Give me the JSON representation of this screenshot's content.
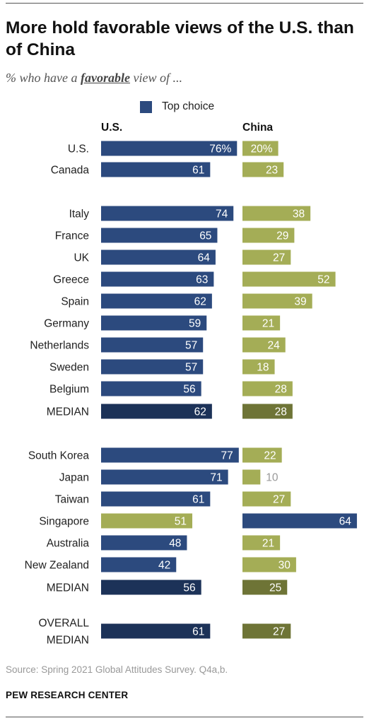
{
  "title": "More hold favorable views of the U.S. than of China",
  "subtitle": {
    "prefix": "% who have a ",
    "emphasis": "favorable",
    "suffix": " view of ..."
  },
  "legend": {
    "label": "Top choice"
  },
  "columns": {
    "us": "U.S.",
    "china": "China"
  },
  "source": "Source: Spring 2021 Global Attitudes Survey. Q4a,b.",
  "organization": "PEW RESEARCH CENTER",
  "colors": {
    "top_choice": "#2c4a7e",
    "other": "#a4ad56",
    "median_us": "#1c3258",
    "median_china": "#6e7436",
    "outside_label": "#999999"
  },
  "chart_data": {
    "type": "bar",
    "orientation": "horizontal",
    "series": [
      {
        "name": "U.S.",
        "values": [
          76,
          61,
          74,
          65,
          64,
          63,
          62,
          59,
          57,
          57,
          56,
          62,
          77,
          71,
          61,
          51,
          48,
          42,
          56,
          61
        ]
      },
      {
        "name": "China",
        "values": [
          20,
          23,
          38,
          29,
          27,
          52,
          39,
          21,
          24,
          18,
          28,
          28,
          22,
          10,
          27,
          64,
          21,
          30,
          25,
          27
        ]
      }
    ],
    "rows": [
      {
        "label": "U.S.",
        "group": 1,
        "us": 76,
        "china": 20,
        "us_label": "76%",
        "china_label": "20%",
        "top": "us"
      },
      {
        "label": "Canada",
        "group": 1,
        "us": 61,
        "china": 23,
        "us_label": "61",
        "china_label": "23",
        "top": "us"
      },
      {
        "label": "Italy",
        "group": 2,
        "us": 74,
        "china": 38,
        "us_label": "74",
        "china_label": "38",
        "top": "us"
      },
      {
        "label": "France",
        "group": 2,
        "us": 65,
        "china": 29,
        "us_label": "65",
        "china_label": "29",
        "top": "us"
      },
      {
        "label": "UK",
        "group": 2,
        "us": 64,
        "china": 27,
        "us_label": "64",
        "china_label": "27",
        "top": "us"
      },
      {
        "label": "Greece",
        "group": 2,
        "us": 63,
        "china": 52,
        "us_label": "63",
        "china_label": "52",
        "top": "us"
      },
      {
        "label": "Spain",
        "group": 2,
        "us": 62,
        "china": 39,
        "us_label": "62",
        "china_label": "39",
        "top": "us"
      },
      {
        "label": "Germany",
        "group": 2,
        "us": 59,
        "china": 21,
        "us_label": "59",
        "china_label": "21",
        "top": "us"
      },
      {
        "label": "Netherlands",
        "group": 2,
        "us": 57,
        "china": 24,
        "us_label": "57",
        "china_label": "24",
        "top": "us"
      },
      {
        "label": "Sweden",
        "group": 2,
        "us": 57,
        "china": 18,
        "us_label": "57",
        "china_label": "18",
        "top": "us"
      },
      {
        "label": "Belgium",
        "group": 2,
        "us": 56,
        "china": 28,
        "us_label": "56",
        "china_label": "28",
        "top": "us"
      },
      {
        "label": "MEDIAN",
        "group": 2,
        "us": 62,
        "china": 28,
        "us_label": "62",
        "china_label": "28",
        "top": "us",
        "median": true
      },
      {
        "label": "South Korea",
        "group": 3,
        "us": 77,
        "china": 22,
        "us_label": "77",
        "china_label": "22",
        "top": "us"
      },
      {
        "label": "Japan",
        "group": 3,
        "us": 71,
        "china": 10,
        "us_label": "71",
        "china_label": "10",
        "top": "us"
      },
      {
        "label": "Taiwan",
        "group": 3,
        "us": 61,
        "china": 27,
        "us_label": "61",
        "china_label": "27",
        "top": "us"
      },
      {
        "label": "Singapore",
        "group": 3,
        "us": 51,
        "china": 64,
        "us_label": "51",
        "china_label": "64",
        "top": "china"
      },
      {
        "label": "Australia",
        "group": 3,
        "us": 48,
        "china": 21,
        "us_label": "48",
        "china_label": "21",
        "top": "us"
      },
      {
        "label": "New Zealand",
        "group": 3,
        "us": 42,
        "china": 30,
        "us_label": "42",
        "china_label": "30",
        "top": "us"
      },
      {
        "label": "MEDIAN",
        "group": 3,
        "us": 56,
        "china": 25,
        "us_label": "56",
        "china_label": "25",
        "top": "us",
        "median": true
      },
      {
        "label": "OVERALL MEDIAN",
        "label_lines": [
          "OVERALL",
          "MEDIAN"
        ],
        "group": 4,
        "us": 61,
        "china": 27,
        "us_label": "61",
        "china_label": "27",
        "top": "us",
        "median": true
      }
    ],
    "scale_max": 100,
    "legend": "top-center",
    "grid": false
  }
}
